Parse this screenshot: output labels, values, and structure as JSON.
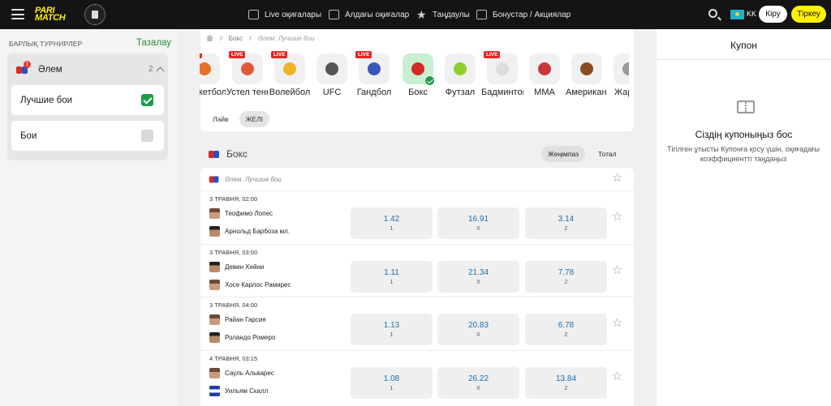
{
  "header": {
    "logo_text": "PARI MATCH",
    "nav": [
      {
        "label": "Live оқиғалары",
        "icon": "live-screen-icon"
      },
      {
        "label": "Алдағы оқиғалар",
        "icon": "calendar-icon"
      },
      {
        "label": "Таңдаулы",
        "icon": "star-icon"
      },
      {
        "label": "Бонустар / Акциялар",
        "icon": "gift-icon"
      }
    ],
    "lang": "KK",
    "login_label": "Кіру",
    "register_label": "Тіркеу"
  },
  "sidebar": {
    "heading": "БАРЛЫҚ ТУРНИРЛЕР",
    "clear_label": "Тазалау",
    "country": {
      "name": "Әлем",
      "count": "2",
      "badge": "1"
    },
    "items": [
      {
        "label": "Лучшие бои",
        "checked": true
      },
      {
        "label": "Бои",
        "checked": false
      }
    ]
  },
  "breadcrumb": {
    "items": [
      "Бокс",
      "Әлем. Лучшие бои"
    ]
  },
  "sports": [
    {
      "label": "Баскетбол",
      "live": true,
      "color": "#e8712b"
    },
    {
      "label": "Устел теннис",
      "live": true,
      "color": "#e05a3a"
    },
    {
      "label": "Волейбол",
      "live": true,
      "color": "#f0b42a"
    },
    {
      "label": "UFC",
      "live": false,
      "color": "#555555"
    },
    {
      "label": "Гандбол",
      "live": true,
      "color": "#3a56b8"
    },
    {
      "label": "Бокс",
      "live": false,
      "color": "#d42a2a",
      "selected": true
    },
    {
      "label": "Футзал",
      "live": false,
      "color": "#8ccf2e"
    },
    {
      "label": "Бадминтон",
      "live": true,
      "color": "#dddddd"
    },
    {
      "label": "MMA",
      "live": false,
      "color": "#c7363b"
    },
    {
      "label": "Американ футбол",
      "live": false,
      "color": "#8a4b25"
    },
    {
      "label": "Жарыс",
      "live": false,
      "color": "#999999"
    }
  ],
  "live_badge": "LIVE",
  "filters": {
    "tabs": [
      "Лайв",
      "ЖЕЛІ"
    ],
    "active": "ЖЕЛІ"
  },
  "section": {
    "title": "Бокс",
    "markets": [
      "Жеңімпаз",
      "Тотал"
    ],
    "active_market": "Жеңімпаз",
    "tournament": "Әлем. Лучшие бои"
  },
  "events": [
    {
      "date": "3 ТРАВНЯ, 02:00",
      "team1": "Теофимо Лопес",
      "team2": "Арнольд Барбоза мл.",
      "odds": [
        {
          "v": "1.42",
          "k": "1"
        },
        {
          "v": "16.91",
          "k": "X"
        },
        {
          "v": "3.14",
          "k": "2"
        }
      ]
    },
    {
      "date": "3 ТРАВНЯ, 03:00",
      "team1": "Девин Хейни",
      "team2": "Хосе Карлос Рамирес",
      "odds": [
        {
          "v": "1.11",
          "k": "1"
        },
        {
          "v": "21.34",
          "k": "X"
        },
        {
          "v": "7.78",
          "k": "2"
        }
      ]
    },
    {
      "date": "3 ТРАВНЯ, 04:00",
      "team1": "Райан Гарсия",
      "team2": "Роландо Ромеро",
      "odds": [
        {
          "v": "1.13",
          "k": "1"
        },
        {
          "v": "20.83",
          "k": "X"
        },
        {
          "v": "6.78",
          "k": "2"
        }
      ]
    },
    {
      "date": "4 ТРАВНЯ, 03:15",
      "team1": "Сауль Альварес",
      "team2": "Уильям Скалл",
      "odds": [
        {
          "v": "1.08",
          "k": "1"
        },
        {
          "v": "26.22",
          "k": "X"
        },
        {
          "v": "13.84",
          "k": "2"
        }
      ]
    }
  ],
  "coupon": {
    "title": "Купон",
    "empty_title": "Сіздің купоныңыз бос",
    "empty_desc": "Тігілген ұтысты Купонға қосу үшін, оқиғадағы коэффициентті таңдаңыз"
  }
}
